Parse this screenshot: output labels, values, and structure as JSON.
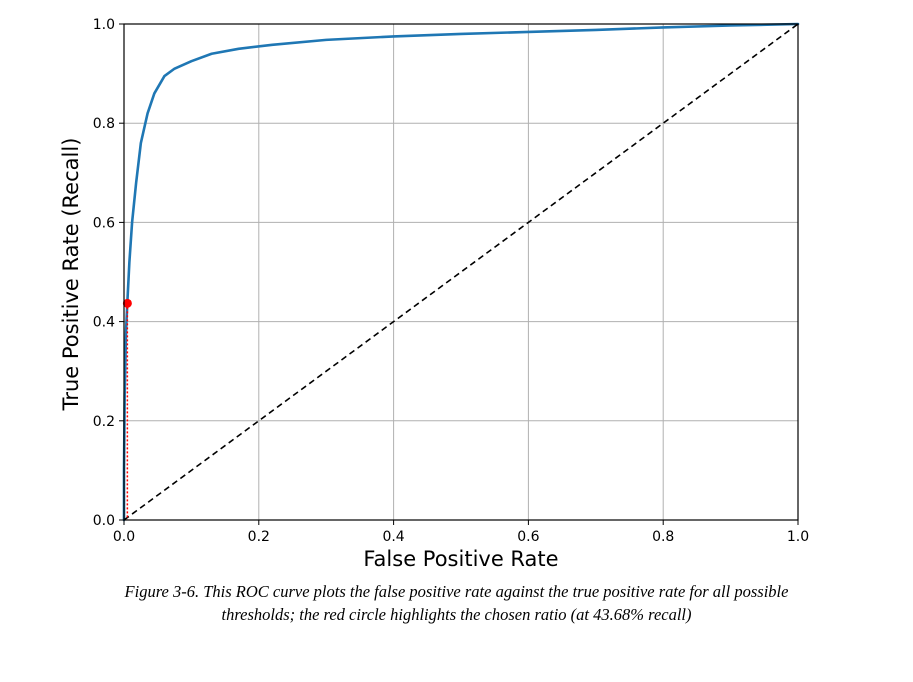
{
  "chart_data": {
    "type": "line",
    "xlabel": "False Positive Rate",
    "ylabel": "True Positive Rate (Recall)",
    "xlim": [
      0,
      1
    ],
    "ylim": [
      0,
      1
    ],
    "grid": true,
    "x_ticks": [
      {
        "value": 0.0,
        "label": "0.0"
      },
      {
        "value": 0.2,
        "label": "0.2"
      },
      {
        "value": 0.4,
        "label": "0.4"
      },
      {
        "value": 0.6,
        "label": "0.6"
      },
      {
        "value": 0.8,
        "label": "0.8"
      },
      {
        "value": 1.0,
        "label": "1.0"
      }
    ],
    "y_ticks": [
      {
        "value": 0.0,
        "label": "0.0"
      },
      {
        "value": 0.2,
        "label": "0.2"
      },
      {
        "value": 0.4,
        "label": "0.4"
      },
      {
        "value": 0.6,
        "label": "0.6"
      },
      {
        "value": 0.8,
        "label": "0.8"
      },
      {
        "value": 1.0,
        "label": "1.0"
      }
    ],
    "series": [
      {
        "color": "#1f77b4",
        "style": "solid",
        "points": [
          [
            0.0,
            0.0
          ],
          [
            0.0,
            0.1
          ],
          [
            0.001,
            0.25
          ],
          [
            0.003,
            0.38
          ],
          [
            0.005,
            0.44
          ],
          [
            0.008,
            0.52
          ],
          [
            0.012,
            0.6
          ],
          [
            0.018,
            0.68
          ],
          [
            0.025,
            0.76
          ],
          [
            0.035,
            0.82
          ],
          [
            0.045,
            0.86
          ],
          [
            0.06,
            0.895
          ],
          [
            0.075,
            0.91
          ],
          [
            0.1,
            0.925
          ],
          [
            0.13,
            0.94
          ],
          [
            0.17,
            0.95
          ],
          [
            0.22,
            0.958
          ],
          [
            0.3,
            0.968
          ],
          [
            0.4,
            0.975
          ],
          [
            0.5,
            0.98
          ],
          [
            0.6,
            0.984
          ],
          [
            0.7,
            0.988
          ],
          [
            0.8,
            0.993
          ],
          [
            0.9,
            0.997
          ],
          [
            1.0,
            1.0
          ]
        ]
      },
      {
        "color": "#000000",
        "style": "dashed",
        "points": [
          [
            0.0,
            0.0
          ],
          [
            1.0,
            1.0
          ]
        ]
      }
    ],
    "highlight": {
      "color": "#ff0000",
      "x": 0.005,
      "y": 0.4368,
      "guide": "dotted-vertical"
    }
  },
  "caption": {
    "line1": "Figure 3-6. This ROC curve plots the false positive rate against the true positive rate for all possible",
    "line2": "thresholds; the red circle highlights the chosen ratio (at 43.68% recall)"
  }
}
